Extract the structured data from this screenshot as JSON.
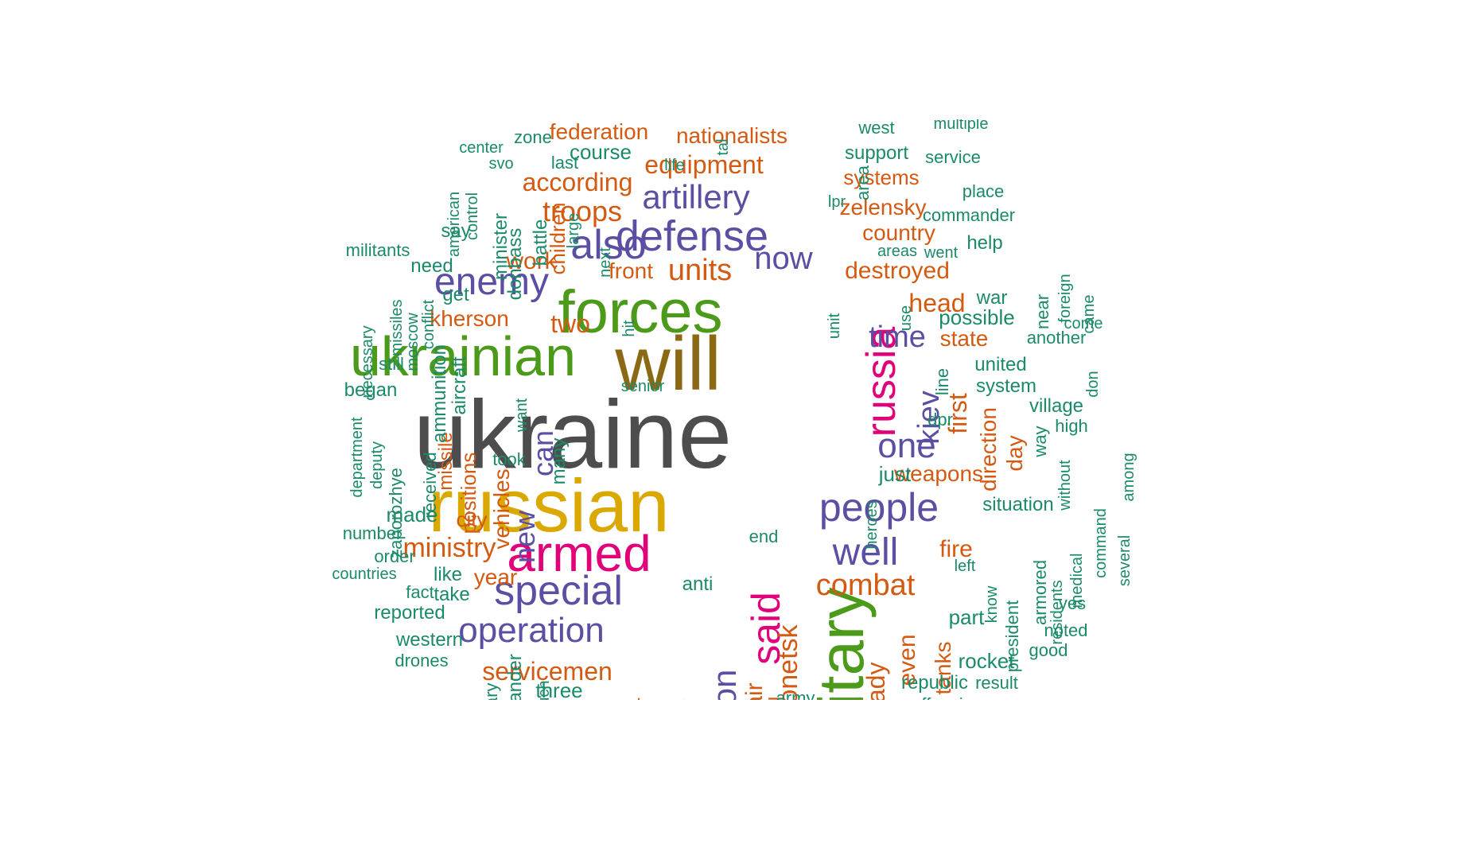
{
  "palette": {
    "gray": "#4d4d4d",
    "brown": "#8b6914",
    "gold": "#dba800",
    "magenta": "#e0007a",
    "green": "#4c9a1a",
    "purple": "#5b4fa3",
    "orange": "#d45a12",
    "teal": "#1b8a6b"
  },
  "words": [
    {
      "text": "ukraine",
      "color": "gray"
    },
    {
      "text": "russian",
      "color": "gold"
    },
    {
      "text": "will",
      "color": "brown"
    },
    {
      "text": "forces",
      "color": "green"
    },
    {
      "text": "ukrainian",
      "color": "green"
    },
    {
      "text": "military",
      "color": "green"
    },
    {
      "text": "armed",
      "color": "magenta"
    },
    {
      "text": "russia",
      "color": "magenta"
    },
    {
      "text": "said",
      "color": "magenta"
    },
    {
      "text": "defense",
      "color": "purple"
    },
    {
      "text": "special",
      "color": "purple"
    },
    {
      "text": "operation",
      "color": "purple"
    },
    {
      "text": "enemy",
      "color": "purple"
    },
    {
      "text": "also",
      "color": "purple"
    },
    {
      "text": "artillery",
      "color": "purple"
    },
    {
      "text": "people",
      "color": "purple"
    },
    {
      "text": "well",
      "color": "purple"
    },
    {
      "text": "now",
      "color": "purple"
    },
    {
      "text": "one",
      "color": "purple"
    },
    {
      "text": "time",
      "color": "purple"
    },
    {
      "text": "region",
      "color": "purple"
    },
    {
      "text": "kiev",
      "color": "purple"
    },
    {
      "text": "can",
      "color": "purple"
    },
    {
      "text": "new",
      "color": "purple"
    },
    {
      "text": "equipment",
      "color": "orange"
    },
    {
      "text": "troops",
      "color": "orange"
    },
    {
      "text": "according",
      "color": "orange"
    },
    {
      "text": "units",
      "color": "orange"
    },
    {
      "text": "combat",
      "color": "orange"
    },
    {
      "text": "ministry",
      "color": "orange"
    },
    {
      "text": "servicemen",
      "color": "orange"
    },
    {
      "text": "kherson",
      "color": "orange"
    },
    {
      "text": "head",
      "color": "orange"
    },
    {
      "text": "destroyed",
      "color": "orange"
    },
    {
      "text": "zelensky",
      "color": "orange"
    },
    {
      "text": "country",
      "color": "orange"
    },
    {
      "text": "weapons",
      "color": "orange"
    },
    {
      "text": "federation",
      "color": "orange"
    },
    {
      "text": "nationalists",
      "color": "orange"
    },
    {
      "text": "systems",
      "color": "orange"
    },
    {
      "text": "two",
      "color": "orange"
    },
    {
      "text": "work",
      "color": "orange"
    },
    {
      "text": "front",
      "color": "orange"
    },
    {
      "text": "state",
      "color": "orange"
    },
    {
      "text": "first",
      "color": "orange"
    },
    {
      "text": "direction",
      "color": "orange"
    },
    {
      "text": "day",
      "color": "orange"
    },
    {
      "text": "fire",
      "color": "orange"
    },
    {
      "text": "year",
      "color": "orange"
    },
    {
      "text": "city",
      "color": "orange"
    },
    {
      "text": "vehicles",
      "color": "orange"
    },
    {
      "text": "positions",
      "color": "orange"
    },
    {
      "text": "missile",
      "color": "orange"
    },
    {
      "text": "children",
      "color": "orange"
    },
    {
      "text": "donetsk",
      "color": "orange"
    },
    {
      "text": "air",
      "color": "orange"
    },
    {
      "text": "already",
      "color": "orange"
    },
    {
      "text": "even",
      "color": "orange"
    },
    {
      "text": "tanks",
      "color": "orange"
    },
    {
      "text": "ral",
      "color": "orange"
    },
    {
      "text": "ur",
      "color": "orange"
    },
    {
      "text": "u",
      "color": "orange"
    },
    {
      "text": "course",
      "color": "teal"
    },
    {
      "text": "zone",
      "color": "teal"
    },
    {
      "text": "center",
      "color": "teal"
    },
    {
      "text": "svo",
      "color": "teal"
    },
    {
      "text": "last",
      "color": "teal"
    },
    {
      "text": "life",
      "color": "teal"
    },
    {
      "text": "west",
      "color": "teal"
    },
    {
      "text": "multiple",
      "color": "teal"
    },
    {
      "text": "support",
      "color": "teal"
    },
    {
      "text": "service",
      "color": "teal"
    },
    {
      "text": "place",
      "color": "teal"
    },
    {
      "text": "commander",
      "color": "teal"
    },
    {
      "text": "help",
      "color": "teal"
    },
    {
      "text": "areas",
      "color": "teal"
    },
    {
      "text": "went",
      "color": "teal"
    },
    {
      "text": "lpr",
      "color": "teal"
    },
    {
      "text": "area",
      "color": "teal"
    },
    {
      "text": "tal",
      "color": "teal"
    },
    {
      "text": "american",
      "color": "teal"
    },
    {
      "text": "control",
      "color": "teal"
    },
    {
      "text": "minister",
      "color": "teal"
    },
    {
      "text": "donbass",
      "color": "teal"
    },
    {
      "text": "battle",
      "color": "teal"
    },
    {
      "text": "large",
      "color": "teal"
    },
    {
      "text": "next",
      "color": "teal"
    },
    {
      "text": "say",
      "color": "teal"
    },
    {
      "text": "militants",
      "color": "teal"
    },
    {
      "text": "need",
      "color": "teal"
    },
    {
      "text": "get",
      "color": "teal"
    },
    {
      "text": "missiles",
      "color": "teal"
    },
    {
      "text": "moscow",
      "color": "teal"
    },
    {
      "text": "conflict",
      "color": "teal"
    },
    {
      "text": "necessary",
      "color": "teal"
    },
    {
      "text": "ammunition",
      "color": "teal"
    },
    {
      "text": "aircraft",
      "color": "teal"
    },
    {
      "text": "hit",
      "color": "teal"
    },
    {
      "text": "still",
      "color": "teal"
    },
    {
      "text": "began",
      "color": "teal"
    },
    {
      "text": "department",
      "color": "teal"
    },
    {
      "text": "deputy",
      "color": "teal"
    },
    {
      "text": "zaporozhye",
      "color": "teal"
    },
    {
      "text": "received",
      "color": "teal"
    },
    {
      "text": "want",
      "color": "teal"
    },
    {
      "text": "senior",
      "color": "teal"
    },
    {
      "text": "took",
      "color": "teal"
    },
    {
      "text": "many",
      "color": "teal"
    },
    {
      "text": "made",
      "color": "teal"
    },
    {
      "text": "number",
      "color": "teal"
    },
    {
      "text": "order",
      "color": "teal"
    },
    {
      "text": "countries",
      "color": "teal"
    },
    {
      "text": "like",
      "color": "teal"
    },
    {
      "text": "fact",
      "color": "teal"
    },
    {
      "text": "take",
      "color": "teal"
    },
    {
      "text": "reported",
      "color": "teal"
    },
    {
      "text": "western",
      "color": "teal"
    },
    {
      "text": "drones",
      "color": "teal"
    },
    {
      "text": "alexander",
      "color": "teal"
    },
    {
      "text": "uary",
      "color": "teal"
    },
    {
      "text": "much",
      "color": "teal"
    },
    {
      "text": "three",
      "color": "teal"
    },
    {
      "text": "anti",
      "color": "teal"
    },
    {
      "text": "end",
      "color": "teal"
    },
    {
      "text": "army",
      "color": "teal"
    },
    {
      "text": "heroes",
      "color": "teal"
    },
    {
      "text": "just",
      "color": "teal"
    },
    {
      "text": "dpr",
      "color": "teal"
    },
    {
      "text": "line",
      "color": "teal"
    },
    {
      "text": "unit",
      "color": "teal"
    },
    {
      "text": "use",
      "color": "teal"
    },
    {
      "text": "war",
      "color": "teal"
    },
    {
      "text": "possible",
      "color": "teal"
    },
    {
      "text": "near",
      "color": "teal"
    },
    {
      "text": "foreign",
      "color": "teal"
    },
    {
      "text": "came",
      "color": "teal"
    },
    {
      "text": "come",
      "color": "teal"
    },
    {
      "text": "another",
      "color": "teal"
    },
    {
      "text": "united",
      "color": "teal"
    },
    {
      "text": "system",
      "color": "teal"
    },
    {
      "text": "don",
      "color": "teal"
    },
    {
      "text": "village",
      "color": "teal"
    },
    {
      "text": "high",
      "color": "teal"
    },
    {
      "text": "way",
      "color": "teal"
    },
    {
      "text": "without",
      "color": "teal"
    },
    {
      "text": "among",
      "color": "teal"
    },
    {
      "text": "situation",
      "color": "teal"
    },
    {
      "text": "command",
      "color": "teal"
    },
    {
      "text": "several",
      "color": "teal"
    },
    {
      "text": "armored",
      "color": "teal"
    },
    {
      "text": "residents",
      "color": "teal"
    },
    {
      "text": "medical",
      "color": "teal"
    },
    {
      "text": "yes",
      "color": "teal"
    },
    {
      "text": "noted",
      "color": "teal"
    },
    {
      "text": "good",
      "color": "teal"
    },
    {
      "text": "know",
      "color": "teal"
    },
    {
      "text": "president",
      "color": "teal"
    },
    {
      "text": "left",
      "color": "teal"
    },
    {
      "text": "part",
      "color": "teal"
    },
    {
      "text": "rocket",
      "color": "teal"
    },
    {
      "text": "result",
      "color": "teal"
    },
    {
      "text": "republic",
      "color": "teal"
    },
    {
      "text": "offensive",
      "color": "teal"
    }
  ]
}
